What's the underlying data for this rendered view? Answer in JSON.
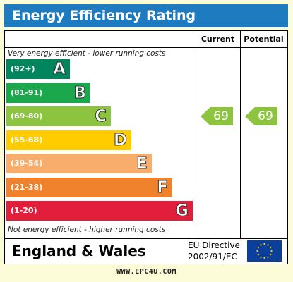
{
  "title": "Energy Efficiency Rating",
  "chart_data": {
    "type": "bar",
    "columns": [
      "Current",
      "Potential"
    ],
    "top_note": "Very energy efficient - lower running costs",
    "bottom_note": "Not energy efficient - higher running costs",
    "bands": [
      {
        "range": "(92+)",
        "letter": "A",
        "color": "#00855c"
      },
      {
        "range": "(81-91)",
        "letter": "B",
        "color": "#1ba74b"
      },
      {
        "range": "(69-80)",
        "letter": "C",
        "color": "#8cc43f"
      },
      {
        "range": "(55-68)",
        "letter": "D",
        "color": "#ffcc00"
      },
      {
        "range": "(39-54)",
        "letter": "E",
        "color": "#f8ad6c"
      },
      {
        "range": "(21-38)",
        "letter": "F",
        "color": "#f0822e"
      },
      {
        "range": "(1-20)",
        "letter": "G",
        "color": "#e31d3c"
      }
    ],
    "current": {
      "value": 69,
      "band": "C"
    },
    "potential": {
      "value": 69,
      "band": "C"
    }
  },
  "footer": {
    "region": "England & Wales",
    "directive_line1": "EU Directive",
    "directive_line2": "2002/91/EC",
    "flag": "eu-flag-icon"
  },
  "website": "WWW.EPC4U.COM"
}
